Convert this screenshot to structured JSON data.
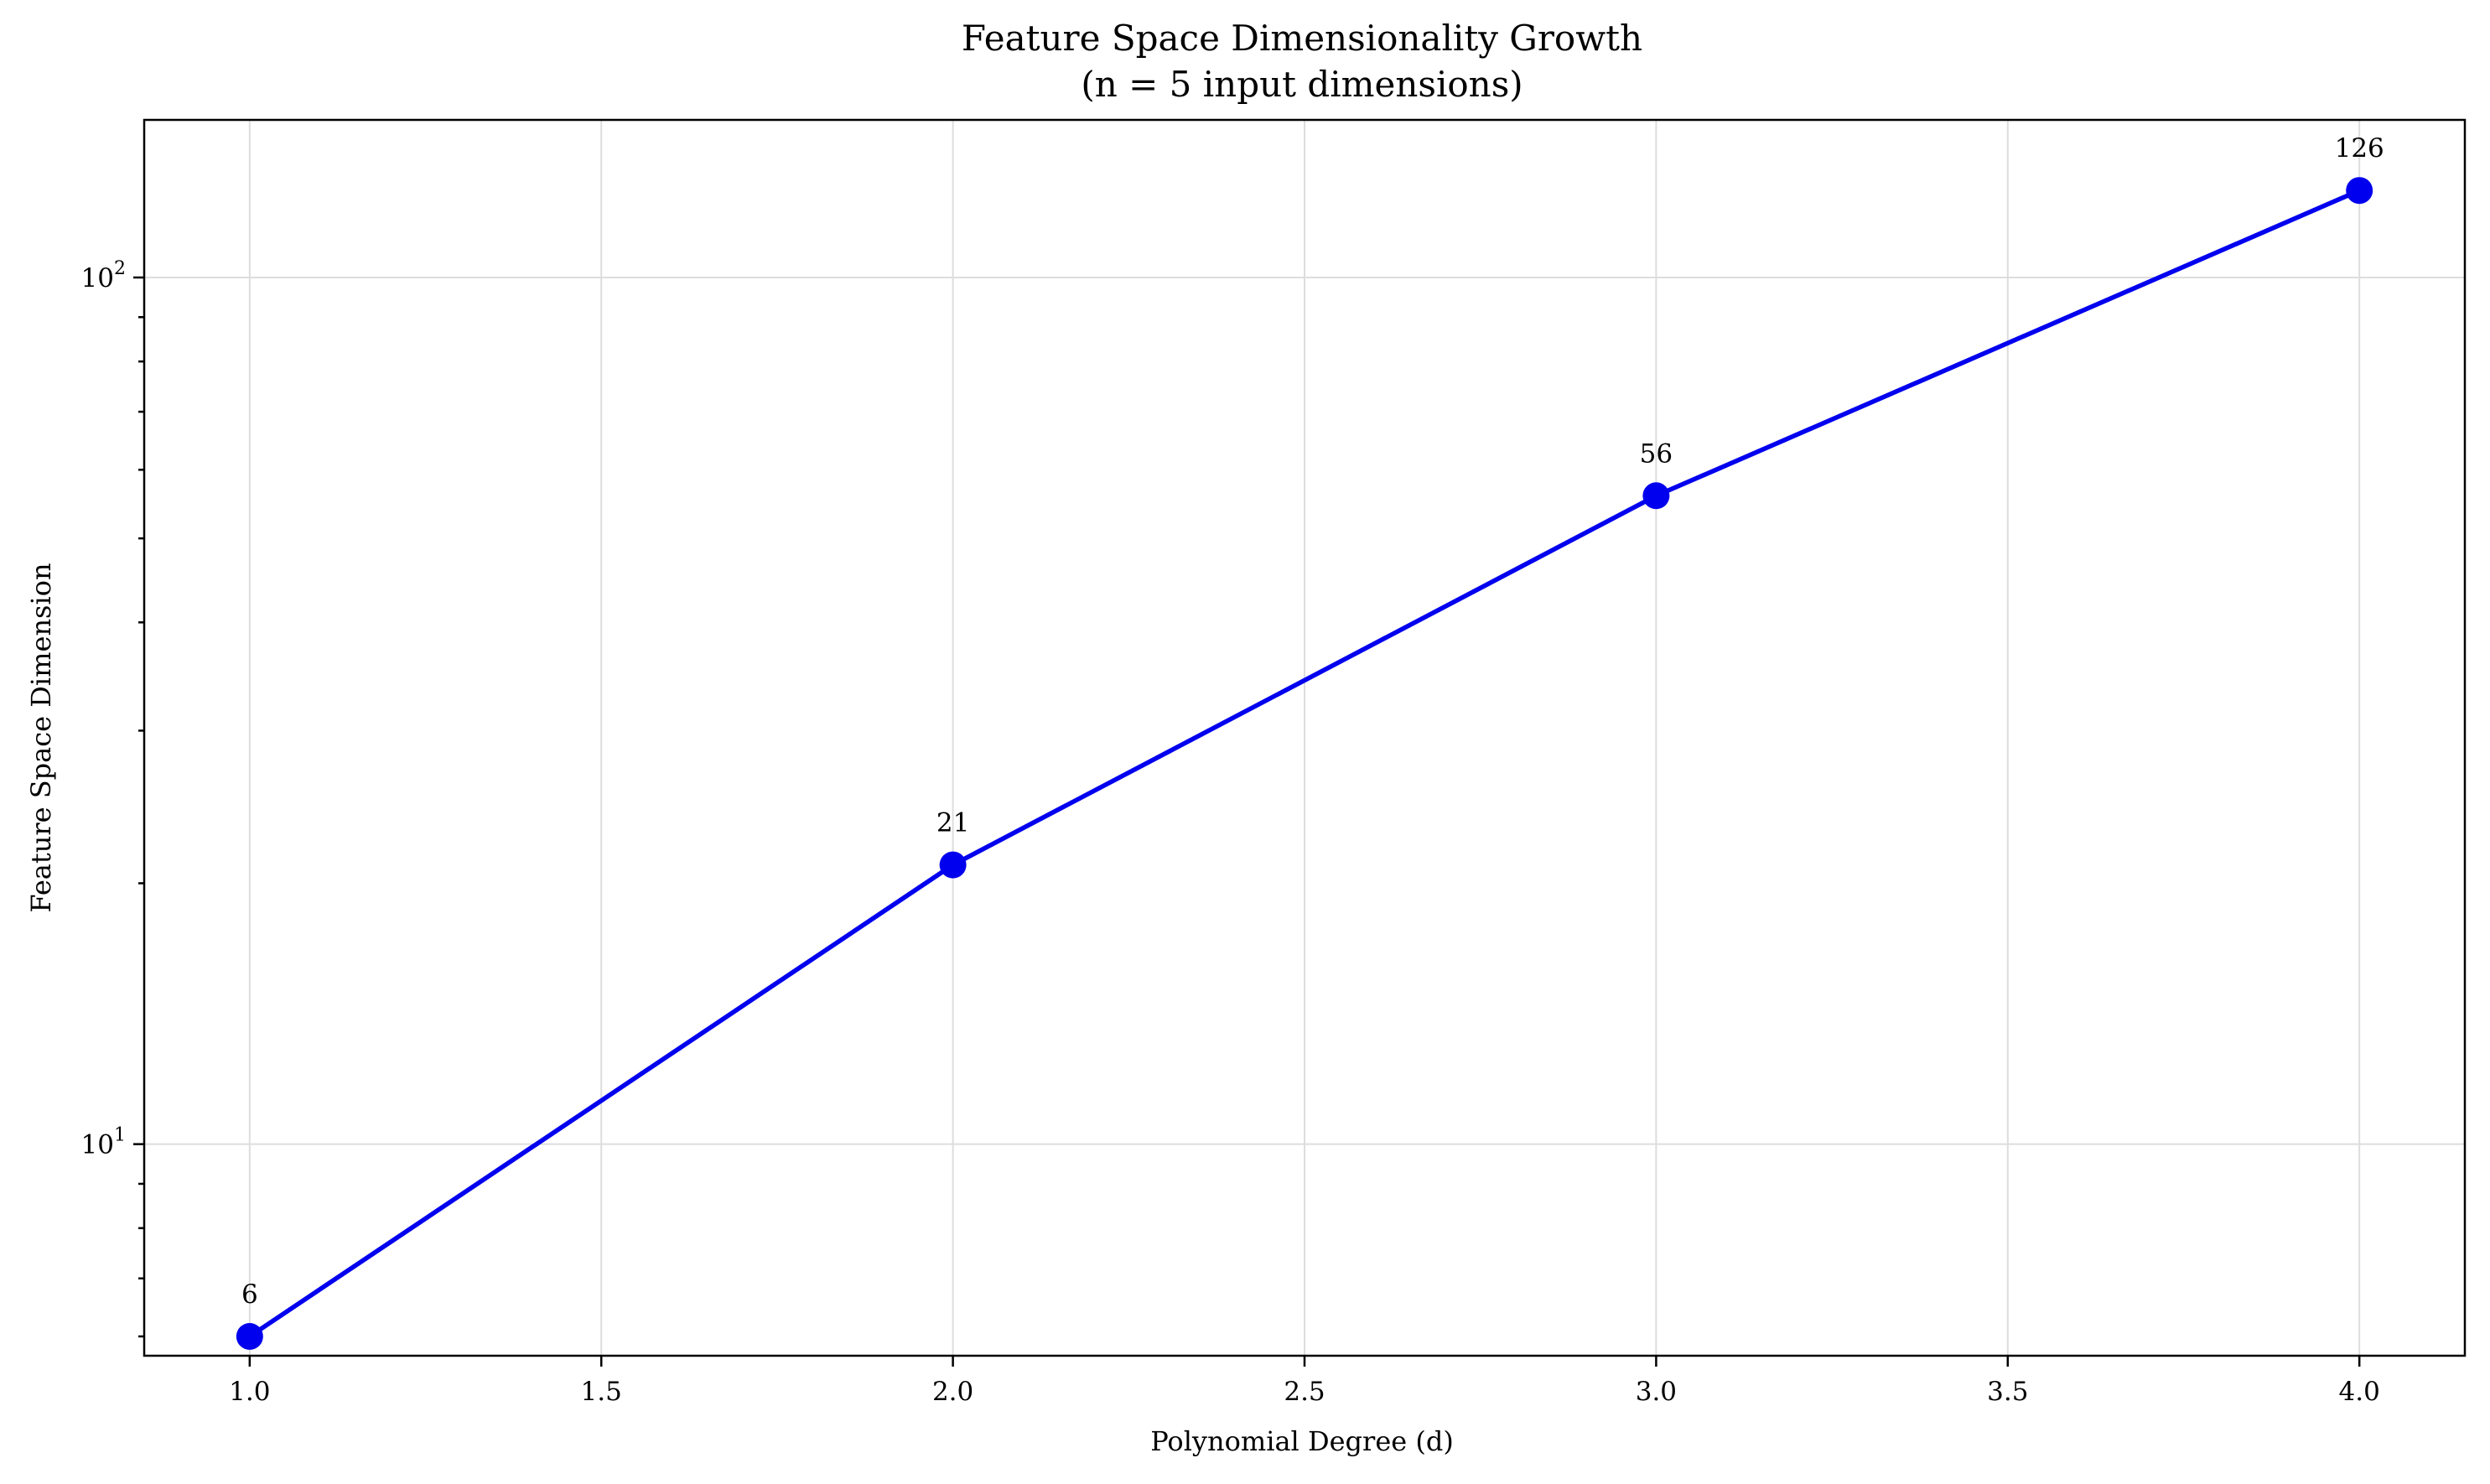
{
  "chart_data": {
    "type": "line",
    "title": "Feature Space Dimensionality Growth",
    "subtitle": "(n = 5 input dimensions)",
    "xlabel": "Polynomial Degree (d)",
    "ylabel": "Feature Space Dimension",
    "yscale": "log",
    "xlim": [
      0.85,
      4.15
    ],
    "ylim": [
      5.7,
      152
    ],
    "x_ticks": [
      {
        "value": 1.0,
        "label": "1.0"
      },
      {
        "value": 1.5,
        "label": "1.5"
      },
      {
        "value": 2.0,
        "label": "2.0"
      },
      {
        "value": 2.5,
        "label": "2.5"
      },
      {
        "value": 3.0,
        "label": "3.0"
      },
      {
        "value": 3.5,
        "label": "3.5"
      },
      {
        "value": 4.0,
        "label": "4.0"
      }
    ],
    "y_ticks": [
      {
        "value": 10,
        "base": "10",
        "exp": "1"
      },
      {
        "value": 100,
        "base": "10",
        "exp": "2"
      }
    ],
    "grid": true,
    "color": "#0000ee",
    "series": [
      {
        "points": [
          {
            "x": 1,
            "y": 6,
            "label": "6"
          },
          {
            "x": 2,
            "y": 21,
            "label": "21"
          },
          {
            "x": 3,
            "y": 56,
            "label": "56"
          },
          {
            "x": 4,
            "y": 126,
            "label": "126"
          }
        ]
      }
    ]
  }
}
